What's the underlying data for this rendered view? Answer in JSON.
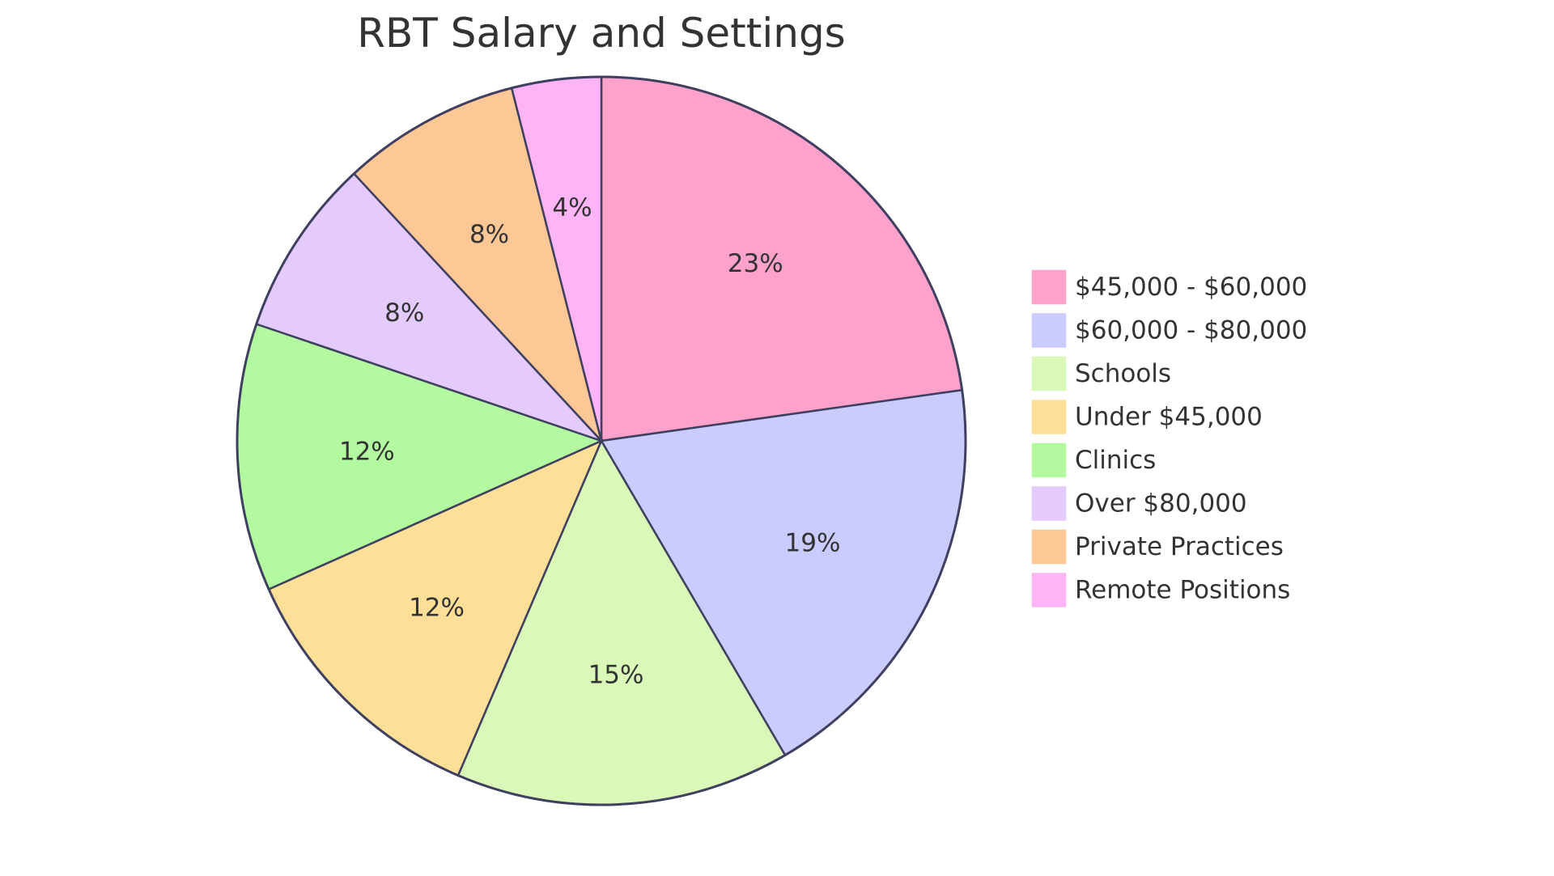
{
  "chart_data": {
    "type": "pie",
    "title": "RBT Salary and Settings",
    "unit": "%",
    "legend_position": "right",
    "slices": [
      {
        "label": "$45,000 - $60,000",
        "value": 23,
        "display": "23%",
        "color": "#FFA2CB"
      },
      {
        "label": "$60,000 - $80,000",
        "value": 19,
        "display": "19%",
        "color": "#CACBFF"
      },
      {
        "label": "Schools",
        "value": 15,
        "display": "15%",
        "color": "#DAF9B8"
      },
      {
        "label": "Under $45,000",
        "value": 12,
        "display": "12%",
        "color": "#FEDF97"
      },
      {
        "label": "Clinics",
        "value": 12,
        "display": "12%",
        "color": "#B3F9A0"
      },
      {
        "label": "Over $80,000",
        "value": 8,
        "display": "8%",
        "color": "#E5CAFD"
      },
      {
        "label": "Private Practices",
        "value": 8,
        "display": "8%",
        "color": "#FEC796"
      },
      {
        "label": "Remote Positions",
        "value": 4,
        "display": "4%",
        "color": "#FFB4F5"
      }
    ]
  }
}
